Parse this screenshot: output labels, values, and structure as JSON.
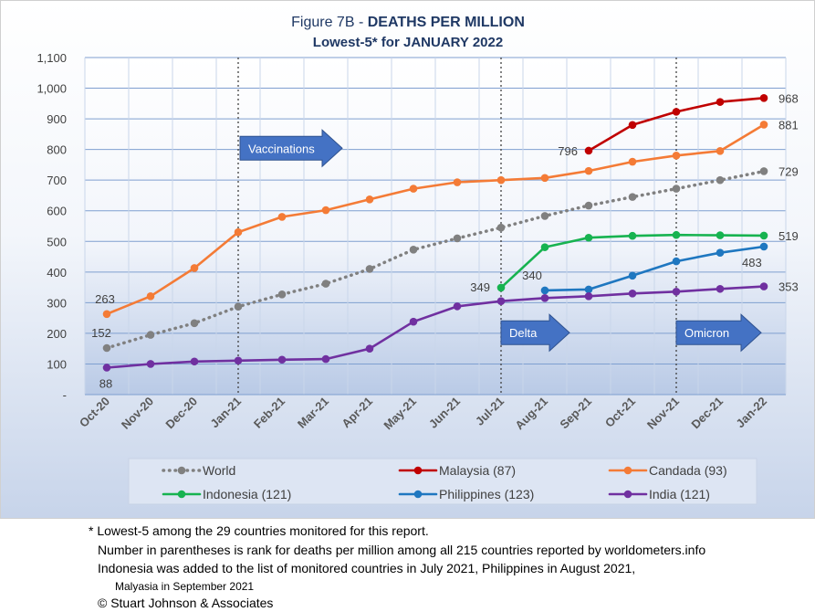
{
  "chart_data": {
    "type": "line",
    "title_prefix": "Figure 7B - ",
    "title_bold": "DEATHS PER MILLION",
    "subtitle": "Lowest-5* for JANUARY 2022",
    "categories": [
      "Oct-20",
      "Nov-20",
      "Dec-20",
      "Jan-21",
      "Feb-21",
      "Mar-21",
      "Apr-21",
      "May-21",
      "Jun-21",
      "Jul-21",
      "Aug-21",
      "Sep-21",
      "Oct-21",
      "Nov-21",
      "Dec-21",
      "Jan-22"
    ],
    "y_ticks": [
      "-",
      "100",
      "200",
      "300",
      "400",
      "500",
      "600",
      "700",
      "800",
      "900",
      "1,000",
      "1,100"
    ],
    "ylim": [
      0,
      1100
    ],
    "grid": true,
    "legend_position": "bottom",
    "series": [
      {
        "name": "World",
        "color": "#808080",
        "dotted": true,
        "values": [
          152,
          195,
          233,
          287,
          327,
          362,
          410,
          473,
          510,
          545,
          583,
          617,
          645,
          672,
          700,
          729
        ],
        "end_label": "729",
        "start_label": "152"
      },
      {
        "name": "Malaysia (87)",
        "color": "#c00000",
        "values": [
          null,
          null,
          null,
          null,
          null,
          null,
          null,
          null,
          null,
          null,
          null,
          796,
          880,
          923,
          955,
          968
        ],
        "end_label": "968",
        "start_label": "796"
      },
      {
        "name": "Candada (93)",
        "color": "#f47b36",
        "values": [
          263,
          321,
          413,
          530,
          580,
          602,
          637,
          672,
          693,
          700,
          707,
          730,
          760,
          780,
          795,
          881
        ],
        "end_label": "881",
        "start_label": "263"
      },
      {
        "name": "Indonesia (121)",
        "color": "#17b350",
        "values": [
          null,
          null,
          null,
          null,
          null,
          null,
          null,
          null,
          null,
          349,
          481,
          512,
          518,
          521,
          520,
          519
        ],
        "end_label": "519",
        "start_label": "349"
      },
      {
        "name": "Philippines (123)",
        "color": "#1f77c0",
        "values": [
          null,
          null,
          null,
          null,
          null,
          null,
          null,
          null,
          null,
          null,
          340,
          343,
          388,
          435,
          463,
          483
        ],
        "end_label": "483",
        "start_label": "340"
      },
      {
        "name": "India (121)",
        "color": "#7030a0",
        "values": [
          88,
          100,
          108,
          111,
          114,
          116,
          150,
          238,
          288,
          305,
          315,
          321,
          330,
          336,
          345,
          353
        ],
        "end_label": "353",
        "start_label": "88"
      }
    ],
    "annotations": [
      {
        "text": "Vaccinations",
        "at_category": 3
      },
      {
        "text": "Delta",
        "at_category": 9
      },
      {
        "text": "Omicron",
        "at_category": 13
      }
    ],
    "vlines_at_categories": [
      3,
      9,
      13
    ]
  },
  "footnotes": {
    "line1": "* Lowest-5 among the 29 countries monitored for this report.",
    "line2": "Number in parentheses is rank for deaths per million among all 215 countries reported by worldometers.info",
    "line3": "Indonesia was added to the list of monitored countries in July 2021, Philippines in August 2021,",
    "line4": "Malyasia in September 2021",
    "line5": "© Stuart Johnson & Associates"
  }
}
